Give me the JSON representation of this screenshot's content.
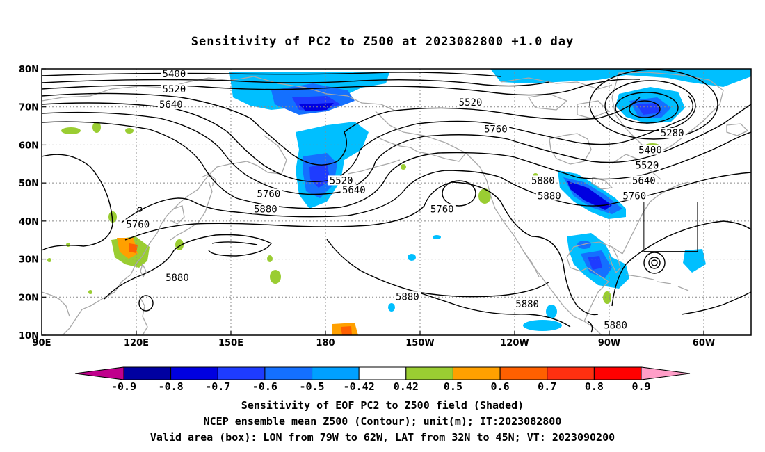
{
  "title": "Sensitivity of PC2 to Z500 at 2023082800 +1.0 day",
  "lon_ticks": [
    "90E",
    "120E",
    "150E",
    "180",
    "150W",
    "120W",
    "90W",
    "60W"
  ],
  "lat_ticks": [
    "80N",
    "70N",
    "60N",
    "50N",
    "40N",
    "30N",
    "20N",
    "10N"
  ],
  "lon_tick_values": [
    90,
    120,
    150,
    180,
    210,
    240,
    270,
    300
  ],
  "lat_tick_values": [
    80,
    70,
    60,
    50,
    40,
    30,
    20,
    10
  ],
  "map_extent": {
    "lon": [
      90,
      315
    ],
    "lat": [
      10,
      80
    ]
  },
  "valid_box": {
    "lon": [
      281,
      298
    ],
    "lat": [
      32,
      45
    ]
  },
  "contour_labels": [
    {
      "text": "5400",
      "lon": 132,
      "lat": 78.5
    },
    {
      "text": "5520",
      "lon": 132,
      "lat": 74.5
    },
    {
      "text": "5640",
      "lon": 131,
      "lat": 70.5
    },
    {
      "text": "5520",
      "lon": 226,
      "lat": 71
    },
    {
      "text": "5760",
      "lon": 234,
      "lat": 64
    },
    {
      "text": "5280",
      "lon": 290,
      "lat": 63
    },
    {
      "text": "5400",
      "lon": 283,
      "lat": 58.5
    },
    {
      "text": "5520",
      "lon": 282,
      "lat": 54.5
    },
    {
      "text": "5640",
      "lon": 281,
      "lat": 50.5
    },
    {
      "text": "5520",
      "lon": 185,
      "lat": 50.5
    },
    {
      "text": "5640",
      "lon": 189,
      "lat": 48
    },
    {
      "text": "5760",
      "lon": 162,
      "lat": 47
    },
    {
      "text": "5880",
      "lon": 161,
      "lat": 43
    },
    {
      "text": "5760",
      "lon": 217,
      "lat": 43
    },
    {
      "text": "5880",
      "lon": 249,
      "lat": 50.5
    },
    {
      "text": "5880",
      "lon": 251,
      "lat": 46.5
    },
    {
      "text": "5760",
      "lon": 278,
      "lat": 46.5
    },
    {
      "text": "5760",
      "lon": 120.5,
      "lat": 39
    },
    {
      "text": "5880",
      "lon": 133,
      "lat": 25
    },
    {
      "text": "5880",
      "lon": 206,
      "lat": 20
    },
    {
      "text": "5880",
      "lon": 244,
      "lat": 18
    },
    {
      "text": "5880",
      "lon": 272,
      "lat": 12.5
    }
  ],
  "colorbar": {
    "labels": [
      "-0.9",
      "-0.8",
      "-0.7",
      "-0.6",
      "-0.5",
      "-0.42",
      "0.42",
      "0.5",
      "0.6",
      "0.7",
      "0.8",
      "0.9"
    ],
    "colors": [
      "#0000a0",
      "#0000e0",
      "#1e3cff",
      "#1470ff",
      "#00a0ff",
      "#ffffff",
      "#9acd32",
      "#ffa000",
      "#ff6000",
      "#ff3010",
      "#ff0000"
    ],
    "under_color": "#c0008c",
    "over_color": "#ff9ec8"
  },
  "captions": {
    "line1": "Sensitivity of EOF PC2 to Z500 field (Shaded)",
    "line2": "NCEP ensemble mean Z500 (Contour); unit(m); IT:2023082800",
    "line3": "Valid area (box): LON from 79W to 62W, LAT from 32N to 45N; VT: 2023090200"
  }
}
